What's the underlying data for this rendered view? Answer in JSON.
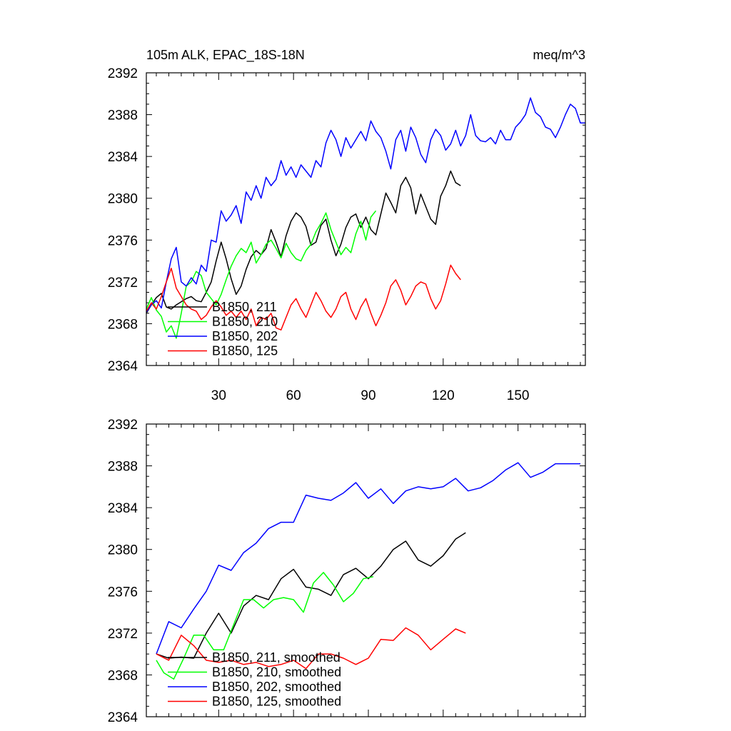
{
  "chart_data": [
    {
      "type": "line",
      "title_left": "105m ALK, EPAC_18S-18N",
      "title_right": "meq/m^3",
      "xlim": [
        1,
        177
      ],
      "ylim": [
        2364,
        2392
      ],
      "yticks": [
        2364,
        2368,
        2372,
        2376,
        2380,
        2384,
        2388,
        2392
      ],
      "ytick_labels": [
        "2364",
        "2368",
        "2372",
        "2376",
        "2380",
        "2384",
        "2388",
        "2392"
      ],
      "xticks": [
        30,
        60,
        90,
        120,
        150
      ],
      "xtick_labels": [
        "30",
        "60",
        "90",
        "120",
        "150"
      ],
      "legend": "bottom-left",
      "series": [
        {
          "name": "B1850, 211",
          "color": "#000000",
          "x": [
            1,
            3,
            5,
            7,
            9,
            11,
            13,
            15,
            17,
            19,
            21,
            23,
            25,
            27,
            29,
            31,
            33,
            35,
            37,
            39,
            41,
            43,
            45,
            47,
            49,
            51,
            53,
            55,
            57,
            59,
            61,
            63,
            65,
            67,
            69,
            71,
            73,
            75,
            77,
            79,
            81,
            83,
            85,
            87,
            89,
            91,
            93,
            95,
            97,
            99,
            101,
            103,
            105,
            107,
            109,
            111,
            113,
            115,
            117,
            119,
            121,
            123,
            125,
            127
          ],
          "values": [
            2369.0,
            2369.8,
            2370.5,
            2370.9,
            2369.6,
            2369.4,
            2369.8,
            2370.1,
            2370.4,
            2370.6,
            2370.2,
            2370.1,
            2371.0,
            2372.0,
            2374.0,
            2375.8,
            2374.2,
            2372.3,
            2370.8,
            2371.6,
            2373.2,
            2374.4,
            2375.0,
            2374.6,
            2375.2,
            2377.0,
            2375.8,
            2374.4,
            2376.4,
            2377.8,
            2378.6,
            2378.2,
            2377.3,
            2375.5,
            2375.8,
            2377.4,
            2378.0,
            2376.0,
            2374.5,
            2375.6,
            2377.2,
            2378.2,
            2378.5,
            2377.2,
            2378.2,
            2377.0,
            2376.5,
            2378.5,
            2380.5,
            2379.6,
            2378.6,
            2381.2,
            2382.0,
            2381.0,
            2378.5,
            2380.4,
            2379.2,
            2378.0,
            2377.5,
            2380.2,
            2381.2,
            2382.6,
            2381.5,
            2381.2
          ]
        },
        {
          "name": "B1850, 210",
          "color": "#00ff00",
          "x": [
            1,
            3,
            5,
            7,
            9,
            11,
            13,
            15,
            17,
            19,
            21,
            23,
            25,
            27,
            29,
            31,
            33,
            35,
            37,
            39,
            41,
            43,
            45,
            47,
            49,
            51,
            53,
            55,
            57,
            59,
            61,
            63,
            65,
            67,
            69,
            71,
            73,
            75,
            77,
            79,
            81,
            83,
            85,
            87,
            89,
            91,
            93
          ],
          "values": [
            2369.4,
            2370.5,
            2369.3,
            2368.7,
            2367.2,
            2367.8,
            2366.6,
            2369.0,
            2371.6,
            2372.0,
            2373.0,
            2372.6,
            2371.0,
            2370.4,
            2369.8,
            2370.8,
            2372.2,
            2373.5,
            2374.5,
            2375.2,
            2374.8,
            2375.8,
            2373.8,
            2374.6,
            2375.6,
            2376.0,
            2375.2,
            2374.3,
            2375.7,
            2374.8,
            2374.2,
            2374.0,
            2375.0,
            2375.6,
            2376.8,
            2377.6,
            2378.6,
            2377.0,
            2375.8,
            2374.6,
            2375.3,
            2374.8,
            2376.6,
            2377.8,
            2376.0,
            2378.2,
            2378.8
          ]
        },
        {
          "name": "B1850, 202",
          "color": "#0000ff",
          "x": [
            1,
            3,
            5,
            7,
            9,
            11,
            13,
            15,
            17,
            19,
            21,
            23,
            25,
            27,
            29,
            31,
            33,
            35,
            37,
            39,
            41,
            43,
            45,
            47,
            49,
            51,
            53,
            55,
            57,
            59,
            61,
            63,
            65,
            67,
            69,
            71,
            73,
            75,
            77,
            79,
            81,
            83,
            85,
            87,
            89,
            91,
            93,
            95,
            97,
            99,
            101,
            103,
            105,
            107,
            109,
            111,
            113,
            115,
            117,
            119,
            121,
            123,
            125,
            127,
            129,
            131,
            133,
            135,
            137,
            139,
            141,
            143,
            145,
            147,
            149,
            151,
            153,
            155,
            157,
            159,
            161,
            163,
            165,
            167,
            169,
            171,
            173,
            175,
            177
          ],
          "values": [
            2369.1,
            2369.8,
            2370.2,
            2369.5,
            2372.0,
            2374.2,
            2375.3,
            2372.0,
            2371.6,
            2372.4,
            2371.8,
            2373.6,
            2373.0,
            2376.0,
            2375.8,
            2378.8,
            2377.8,
            2378.4,
            2379.3,
            2377.6,
            2380.6,
            2379.8,
            2381.2,
            2380.0,
            2382.0,
            2381.2,
            2381.8,
            2383.6,
            2382.2,
            2383.0,
            2382.0,
            2383.2,
            2382.6,
            2382.0,
            2383.6,
            2383.0,
            2385.3,
            2386.5,
            2385.6,
            2384.0,
            2385.8,
            2384.8,
            2385.6,
            2386.4,
            2385.5,
            2387.4,
            2386.4,
            2385.8,
            2384.5,
            2382.8,
            2385.6,
            2386.5,
            2384.5,
            2386.8,
            2385.8,
            2384.2,
            2383.4,
            2385.6,
            2386.6,
            2386.0,
            2384.6,
            2385.2,
            2386.5,
            2385.0,
            2386.0,
            2388.0,
            2386.0,
            2385.5,
            2385.4,
            2385.8,
            2385.2,
            2386.5,
            2385.6,
            2385.6,
            2386.8,
            2387.3,
            2388.0,
            2389.6,
            2388.2,
            2387.8,
            2386.8,
            2386.6,
            2385.8,
            2386.8,
            2388.0,
            2389.0,
            2388.6,
            2387.2,
            2387.2
          ]
        },
        {
          "name": "B1850, 125",
          "color": "#ff0000",
          "x": [
            1,
            3,
            5,
            7,
            9,
            11,
            13,
            15,
            17,
            19,
            21,
            23,
            25,
            27,
            29,
            31,
            33,
            35,
            37,
            39,
            41,
            43,
            45,
            47,
            49,
            51,
            53,
            55,
            57,
            59,
            61,
            63,
            65,
            67,
            69,
            71,
            73,
            75,
            77,
            79,
            81,
            83,
            85,
            87,
            89,
            91,
            93,
            95,
            97,
            99,
            101,
            103,
            105,
            107,
            109,
            111,
            113,
            115,
            117,
            119,
            121,
            123,
            125,
            127
          ],
          "values": [
            2369.2,
            2370.0,
            2369.4,
            2370.6,
            2372.0,
            2373.3,
            2371.4,
            2370.6,
            2369.8,
            2369.4,
            2369.2,
            2368.4,
            2368.8,
            2369.6,
            2370.2,
            2369.6,
            2368.8,
            2369.2,
            2368.6,
            2369.2,
            2368.4,
            2369.4,
            2367.8,
            2368.6,
            2368.4,
            2369.0,
            2367.6,
            2367.4,
            2368.6,
            2369.8,
            2370.4,
            2369.4,
            2368.6,
            2369.8,
            2371.0,
            2370.2,
            2369.2,
            2368.6,
            2369.4,
            2370.6,
            2371.0,
            2369.4,
            2368.4,
            2369.6,
            2370.4,
            2369.0,
            2367.8,
            2368.8,
            2370.0,
            2371.6,
            2372.2,
            2371.2,
            2369.8,
            2370.6,
            2371.6,
            2372.0,
            2371.8,
            2370.4,
            2369.4,
            2370.2,
            2371.8,
            2373.6,
            2372.8,
            2372.2
          ]
        }
      ]
    },
    {
      "type": "line",
      "xlim": [
        1,
        177
      ],
      "ylim": [
        2364,
        2392
      ],
      "yticks": [
        2364,
        2368,
        2372,
        2376,
        2380,
        2384,
        2388,
        2392
      ],
      "ytick_labels": [
        "2364",
        "2368",
        "2372",
        "2376",
        "2380",
        "2384",
        "2388",
        "2392"
      ],
      "xticks": [
        30,
        60,
        90,
        120,
        150
      ],
      "xtick_labels": [],
      "legend": "bottom-left",
      "series": [
        {
          "name": "B1850, 211, smoothed",
          "color": "#000000",
          "x": [
            5,
            10,
            15,
            20,
            25,
            30,
            35,
            40,
            45,
            50,
            55,
            60,
            65,
            70,
            75,
            80,
            85,
            90,
            95,
            100,
            105,
            110,
            115,
            120,
            125,
            129
          ],
          "values": [
            2370.0,
            2369.6,
            2369.7,
            2369.6,
            2372.0,
            2373.9,
            2372.0,
            2374.6,
            2375.6,
            2375.2,
            2377.2,
            2378.1,
            2376.4,
            2376.2,
            2375.6,
            2377.6,
            2378.2,
            2377.2,
            2378.4,
            2380.0,
            2380.8,
            2379.0,
            2378.4,
            2379.4,
            2381.0,
            2381.6
          ]
        },
        {
          "name": "B1850, 210, smoothed",
          "color": "#00ff00",
          "x": [
            5,
            8,
            12,
            16,
            20,
            24,
            28,
            32,
            36,
            40,
            44,
            48,
            52,
            56,
            60,
            64,
            68,
            72,
            76,
            80,
            84,
            88,
            92
          ],
          "values": [
            2369.4,
            2368.2,
            2367.6,
            2369.6,
            2371.8,
            2371.8,
            2370.4,
            2370.4,
            2372.8,
            2375.2,
            2375.2,
            2374.4,
            2375.2,
            2375.4,
            2375.2,
            2374.0,
            2376.8,
            2377.8,
            2376.6,
            2375.0,
            2375.8,
            2377.2,
            2377.4
          ]
        },
        {
          "name": "B1850, 202, smoothed",
          "color": "#0000ff",
          "x": [
            5,
            10,
            15,
            20,
            25,
            30,
            35,
            40,
            45,
            50,
            55,
            60,
            65,
            70,
            75,
            80,
            85,
            90,
            95,
            100,
            105,
            110,
            115,
            120,
            125,
            130,
            135,
            140,
            145,
            150,
            155,
            160,
            165,
            170,
            175
          ],
          "values": [
            2370.0,
            2373.1,
            2372.5,
            2374.3,
            2376.0,
            2378.5,
            2378.0,
            2379.7,
            2380.6,
            2382.0,
            2382.6,
            2382.6,
            2385.2,
            2384.9,
            2384.7,
            2385.4,
            2386.4,
            2384.9,
            2385.8,
            2384.4,
            2385.6,
            2386.0,
            2385.8,
            2386.0,
            2386.8,
            2385.6,
            2385.9,
            2386.6,
            2387.6,
            2388.3,
            2386.9,
            2387.4,
            2388.2,
            2388.2,
            2388.2
          ]
        },
        {
          "name": "B1850, 125, smoothed",
          "color": "#ff0000",
          "x": [
            5,
            10,
            15,
            20,
            25,
            30,
            35,
            40,
            45,
            50,
            55,
            60,
            65,
            70,
            75,
            80,
            85,
            90,
            95,
            100,
            105,
            110,
            115,
            120,
            125,
            129
          ],
          "values": [
            2370.0,
            2369.4,
            2371.8,
            2370.8,
            2369.4,
            2369.2,
            2369.4,
            2369.0,
            2369.2,
            2368.8,
            2369.0,
            2369.4,
            2368.6,
            2370.0,
            2370.0,
            2369.6,
            2369.0,
            2369.6,
            2371.4,
            2371.3,
            2372.5,
            2371.8,
            2370.4,
            2371.4,
            2372.4,
            2372.0
          ]
        }
      ]
    }
  ]
}
